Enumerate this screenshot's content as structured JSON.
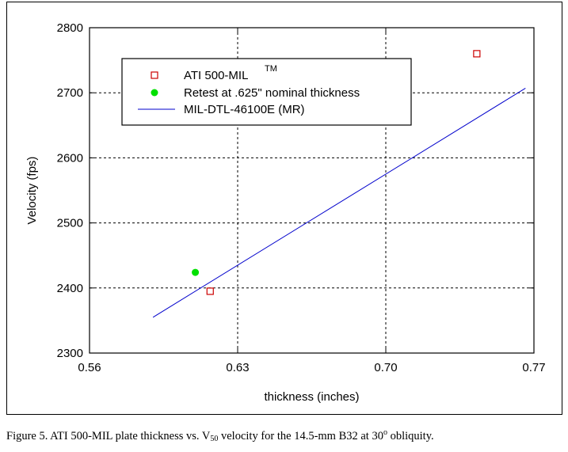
{
  "chart_data": {
    "type": "scatter",
    "xlabel": "thickness (inches)",
    "ylabel": "Velocity (fps)",
    "xlim": [
      0.56,
      0.77
    ],
    "ylim": [
      2300,
      2800
    ],
    "x_ticks": [
      "0.56",
      "0.63",
      "0.70",
      "0.77"
    ],
    "x_tick_values": [
      0.56,
      0.63,
      0.7,
      0.77
    ],
    "y_ticks": [
      "2300",
      "2400",
      "2500",
      "2600",
      "2700",
      "2800"
    ],
    "y_tick_values": [
      2300,
      2400,
      2500,
      2600,
      2700,
      2800
    ],
    "grid": true,
    "legend_position": "top-left",
    "series": [
      {
        "name": "ATI 500-MIL",
        "name_superscript": "TM",
        "kind": "scatter",
        "marker": "open-square",
        "color": "#cc0000",
        "points": [
          {
            "x": 0.617,
            "y": 2395
          },
          {
            "x": 0.743,
            "y": 2760
          }
        ]
      },
      {
        "name": "Retest at .625\" nominal thickness",
        "kind": "scatter",
        "marker": "filled-circle",
        "color": "#00e000",
        "points": [
          {
            "x": 0.61,
            "y": 2424
          }
        ]
      },
      {
        "name": "MIL-DTL-46100E (MR)",
        "kind": "line",
        "color": "#0000cc",
        "points": [
          {
            "x": 0.59,
            "y": 2355
          },
          {
            "x": 0.766,
            "y": 2707
          }
        ]
      }
    ]
  },
  "caption": {
    "prefix": "Figure 5.  ATI 500-MIL plate thickness vs. V",
    "sub": "50",
    "middle": " velocity for the 14.5-mm B32 at 30",
    "sup": "o",
    "suffix": " obliquity."
  }
}
